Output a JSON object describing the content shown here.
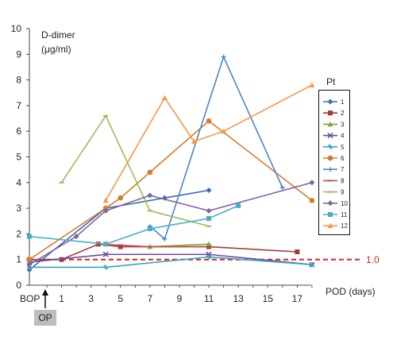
{
  "chart_data": {
    "type": "line",
    "ylabel_line1": "D-dimer",
    "ylabel_line2": "(μg/ml)",
    "xlabel": "POD (days)",
    "legend_title": "Pt",
    "ylim": [
      0,
      10
    ],
    "yticks": [
      0,
      1,
      2,
      3,
      4,
      5,
      6,
      7,
      8,
      9,
      10
    ],
    "xticks": [
      "BOP",
      "1",
      "3",
      "5",
      "7",
      "9",
      "11",
      "13",
      "15",
      "17"
    ],
    "reference_line": {
      "value": 1.0,
      "label": "1.0",
      "color": "#dd2222"
    },
    "op_label": "OP",
    "legend_position": "right",
    "series": [
      {
        "name": "1",
        "color": "#3a6fb0",
        "marker": "diamond",
        "x": [
          "BOP",
          4,
          8,
          11
        ],
        "y": [
          0.6,
          3.0,
          3.4,
          3.7
        ]
      },
      {
        "name": "2",
        "color": "#a33a33",
        "marker": "square",
        "x": [
          "BOP",
          1,
          3.5,
          5,
          11,
          17
        ],
        "y": [
          1.0,
          1.0,
          1.6,
          1.5,
          1.5,
          1.3
        ]
      },
      {
        "name": "3",
        "color": "#7fa83a",
        "marker": "triangle",
        "x": [
          7,
          11
        ],
        "y": [
          1.5,
          1.6
        ]
      },
      {
        "name": "4",
        "color": "#6a4c9c",
        "marker": "x",
        "x": [
          "BOP",
          4,
          11,
          18
        ],
        "y": [
          0.9,
          1.2,
          1.2,
          0.8
        ]
      },
      {
        "name": "5",
        "color": "#3aa3c4",
        "marker": "star",
        "x": [
          "BOP",
          4,
          11,
          18
        ],
        "y": [
          0.7,
          0.7,
          1.1,
          0.8
        ]
      },
      {
        "name": "6",
        "color": "#d97a2a",
        "marker": "circle",
        "x": [
          "BOP",
          4,
          5,
          7,
          11,
          18
        ],
        "y": [
          1.0,
          3.0,
          3.4,
          4.4,
          6.4,
          3.3
        ]
      },
      {
        "name": "7",
        "color": "#4a86c8",
        "marker": "plus",
        "x": [
          7,
          8,
          12,
          16
        ],
        "y": [
          2.3,
          1.8,
          8.9,
          3.8
        ]
      },
      {
        "name": "8",
        "color": "#c0504d",
        "marker": "dash",
        "x": [
          3.5,
          7,
          11
        ],
        "y": [
          1.6,
          1.5,
          1.5
        ]
      },
      {
        "name": "9",
        "color": "#9bbb59",
        "marker": "dash",
        "x": [
          1,
          4,
          7,
          11
        ],
        "y": [
          4.0,
          6.6,
          2.9,
          2.3
        ]
      },
      {
        "name": "10",
        "color": "#8064a2",
        "marker": "diamond",
        "x": [
          "BOP",
          2,
          4,
          7,
          11,
          18
        ],
        "y": [
          0.8,
          1.9,
          2.9,
          3.5,
          2.9,
          4.0
        ]
      },
      {
        "name": "11",
        "color": "#4bacc6",
        "marker": "square",
        "x": [
          "BOP",
          4,
          7,
          11,
          13
        ],
        "y": [
          1.9,
          1.6,
          2.2,
          2.6,
          3.1
        ]
      },
      {
        "name": "12",
        "color": "#f79646",
        "marker": "triangle",
        "x": [
          4,
          8,
          10,
          12,
          18
        ],
        "y": [
          3.3,
          7.3,
          5.6,
          6.0,
          7.8
        ]
      }
    ]
  }
}
